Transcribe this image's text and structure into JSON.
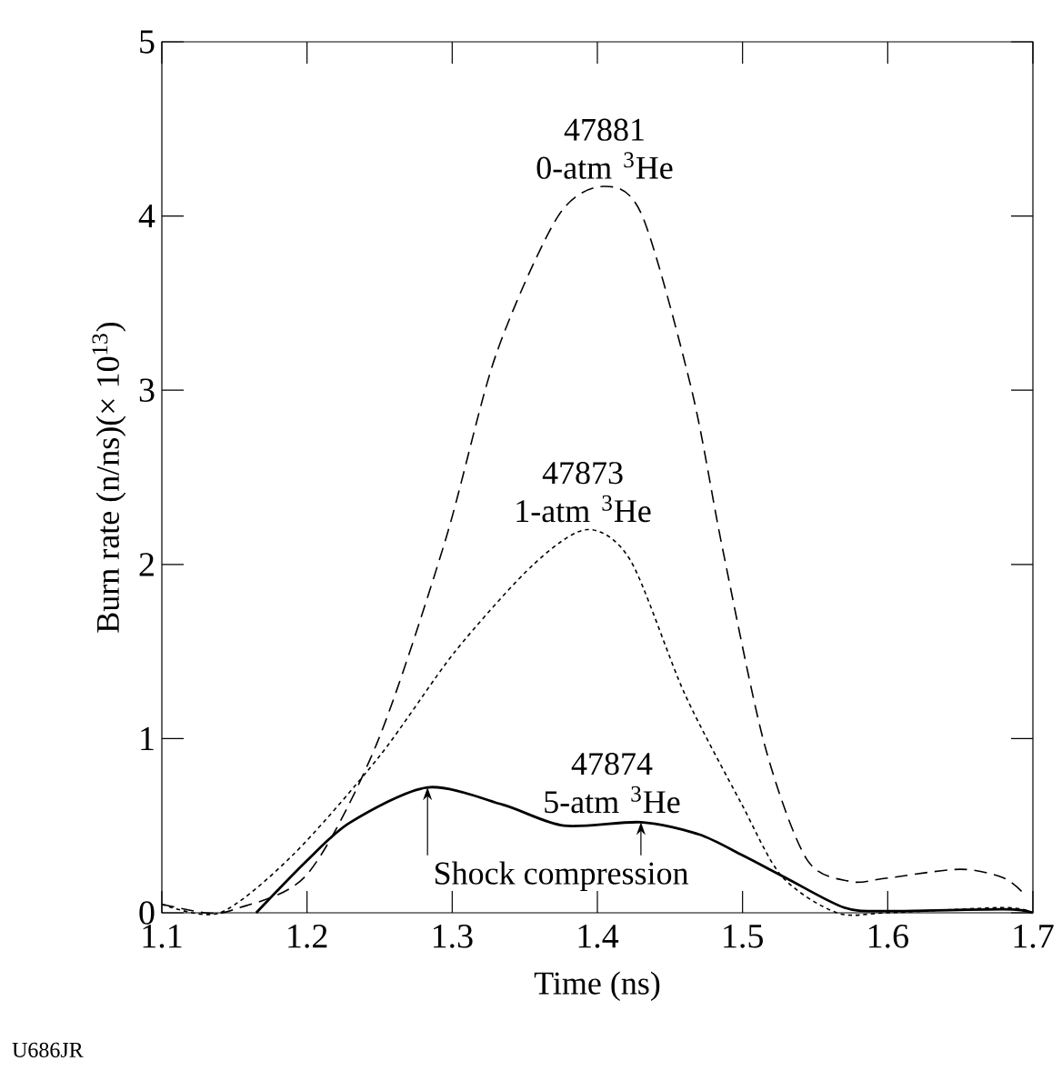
{
  "chart_data": {
    "type": "line",
    "xlabel": "Time (ns)",
    "ylabel": "Burn rate (n/ns)(× 10$^{13}$)",
    "xlim": [
      1.1,
      1.7
    ],
    "ylim": [
      0,
      5
    ],
    "xticks": [
      1.1,
      1.2,
      1.3,
      1.4,
      1.5,
      1.6,
      1.7
    ],
    "yticks": [
      0,
      1,
      2,
      3,
      4,
      5
    ],
    "grid": false,
    "marker": "none",
    "annotations": [
      "Shock compression",
      "U686JR"
    ],
    "series": [
      {
        "name": "47881 0-atm $^{3}$He",
        "color": "#000000",
        "line_style": "dashed",
        "x": [
          1.1,
          1.13,
          1.15,
          1.2,
          1.248,
          1.295,
          1.33,
          1.373,
          1.405,
          1.431,
          1.465,
          1.486,
          1.515,
          1.544,
          1.574,
          1.6,
          1.65,
          1.68,
          1.695
        ],
        "values": [
          0.05,
          0.0,
          0.02,
          0.22,
          0.97,
          2.13,
          3.2,
          4.0,
          4.17,
          4.0,
          3.0,
          2.1,
          0.97,
          0.31,
          0.18,
          0.2,
          0.25,
          0.2,
          0.1
        ]
      },
      {
        "name": "47873 1-atm $^{3}$He",
        "color": "#000000",
        "line_style": "dotted",
        "x": [
          1.1,
          1.14,
          1.19,
          1.25,
          1.302,
          1.356,
          1.393,
          1.423,
          1.46,
          1.499,
          1.527,
          1.565,
          1.6,
          1.68,
          1.7
        ],
        "values": [
          0.05,
          0.0,
          0.33,
          0.9,
          1.5,
          2.0,
          2.2,
          2.02,
          1.26,
          0.63,
          0.21,
          0.0,
          0.0,
          0.03,
          0.0
        ]
      },
      {
        "name": "47874 5-atm $^{3}$He",
        "color": "#000000",
        "line_style": "solid",
        "x": [
          1.165,
          1.2,
          1.23,
          1.283,
          1.335,
          1.377,
          1.43,
          1.47,
          1.5,
          1.53,
          1.57,
          1.6,
          1.68,
          1.7
        ],
        "values": [
          0.0,
          0.3,
          0.52,
          0.72,
          0.62,
          0.5,
          0.52,
          0.45,
          0.33,
          0.2,
          0.03,
          0.01,
          0.02,
          0.0
        ]
      }
    ]
  }
}
